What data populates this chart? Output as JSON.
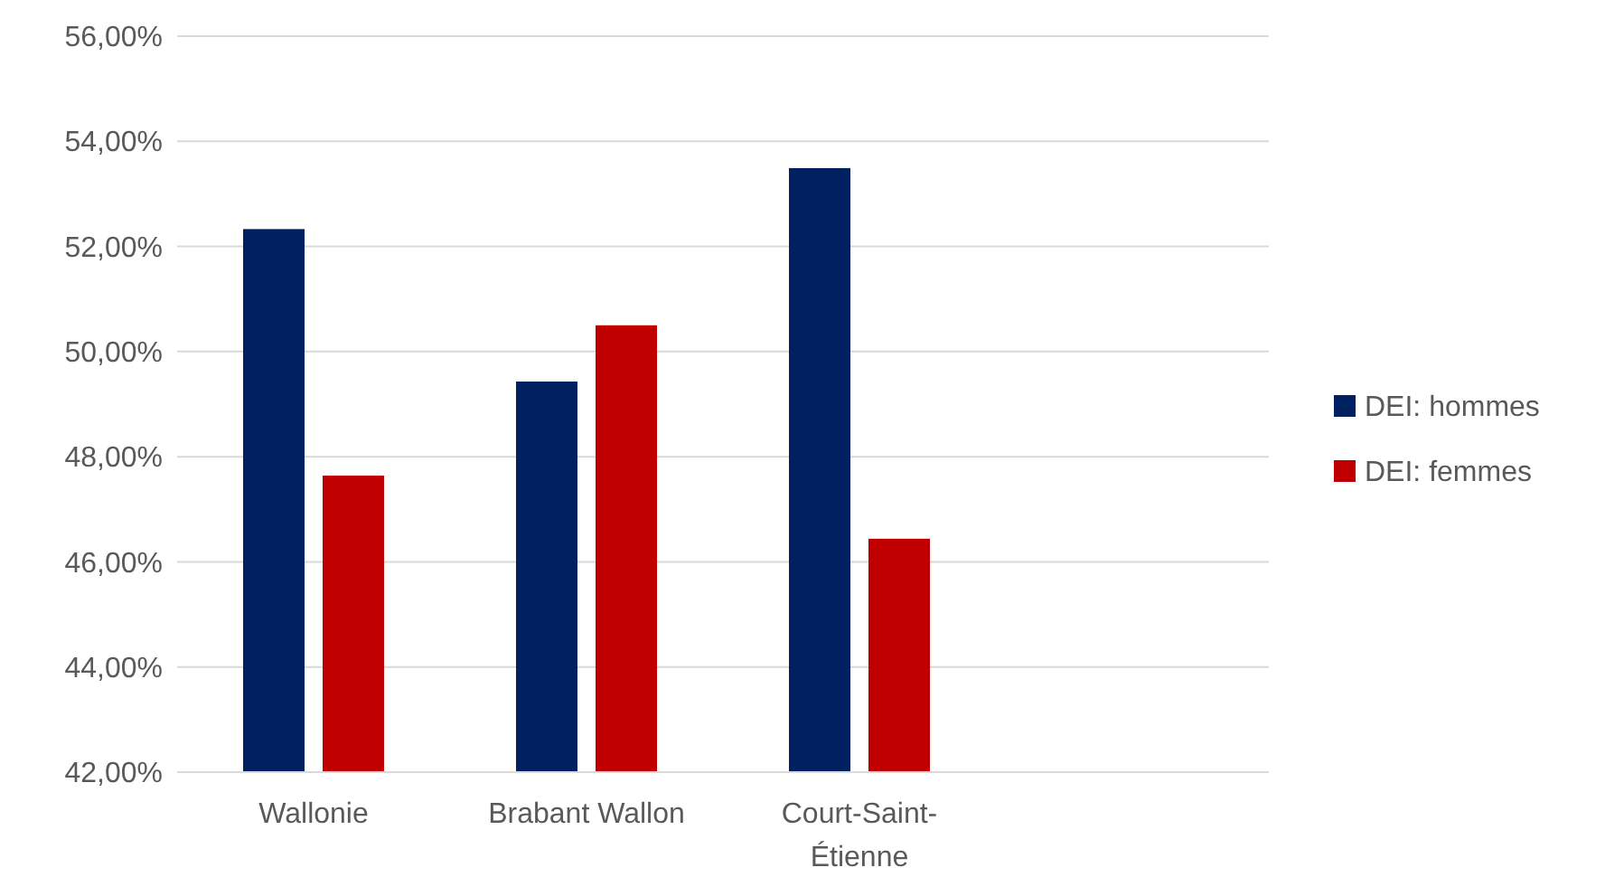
{
  "chart_data": {
    "type": "bar",
    "categories": [
      "Wallonie",
      "Brabant Wallon",
      "Court-Saint-Étienne",
      null
    ],
    "series": [
      {
        "name": "DEI: hommes",
        "color": "#002060",
        "values": [
          52.33,
          49.43,
          53.49,
          null
        ]
      },
      {
        "name": "DEI: femmes",
        "color": "#c00000",
        "values": [
          47.64,
          50.5,
          46.44,
          null
        ]
      }
    ],
    "ylim": [
      42,
      56
    ],
    "yticks": [
      {
        "value": 42,
        "label": "42,00%"
      },
      {
        "value": 44,
        "label": "44,00%"
      },
      {
        "value": 46,
        "label": "46,00%"
      },
      {
        "value": 48,
        "label": "48,00%"
      },
      {
        "value": 50,
        "label": "50,00%"
      },
      {
        "value": 52,
        "label": "52,00%"
      },
      {
        "value": 54,
        "label": "54,00%"
      },
      {
        "value": 56,
        "label": "56,00%"
      }
    ],
    "grid": "y",
    "legend": "right"
  }
}
